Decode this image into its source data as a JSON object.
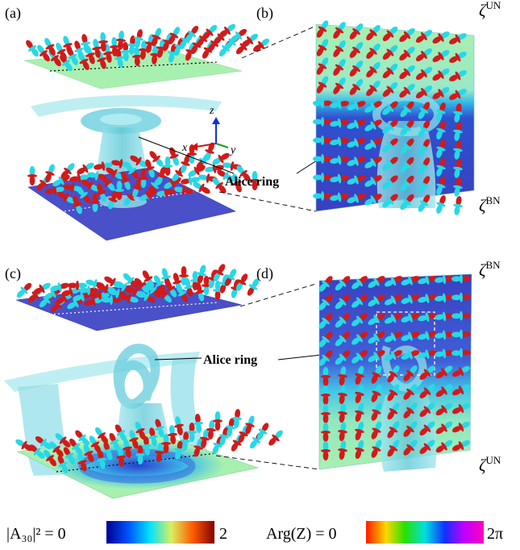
{
  "panels": {
    "a": "(a)",
    "b": "(b)",
    "c": "(c)",
    "d": "(d)"
  },
  "callouts": {
    "top": "Alice ring",
    "bottom": "Alice ring"
  },
  "phase_labels": {
    "b_top": {
      "sym": "ζ",
      "sup": "UN"
    },
    "b_bottom": {
      "sym": "ζ",
      "sup": "BN"
    },
    "d_top": {
      "sym": "ζ",
      "sup": "BN"
    },
    "d_bottom": {
      "sym": "ζ",
      "sup": "UN"
    }
  },
  "axes": {
    "x": "x",
    "y": "y",
    "z": "z"
  },
  "colorbars": {
    "amplitude": {
      "lhs": "|A₃₀|² = 0",
      "max": "2"
    },
    "phase": {
      "lhs": "Arg(Z) = 0",
      "max": "2π"
    }
  },
  "colors": {
    "bn_plane": "#4a50c8",
    "un_plane": "#a8f0b0",
    "isosurface": "#7ad6e0",
    "lobe_cyan": "#27d8e6",
    "lobe_red": "#d21a1a"
  }
}
